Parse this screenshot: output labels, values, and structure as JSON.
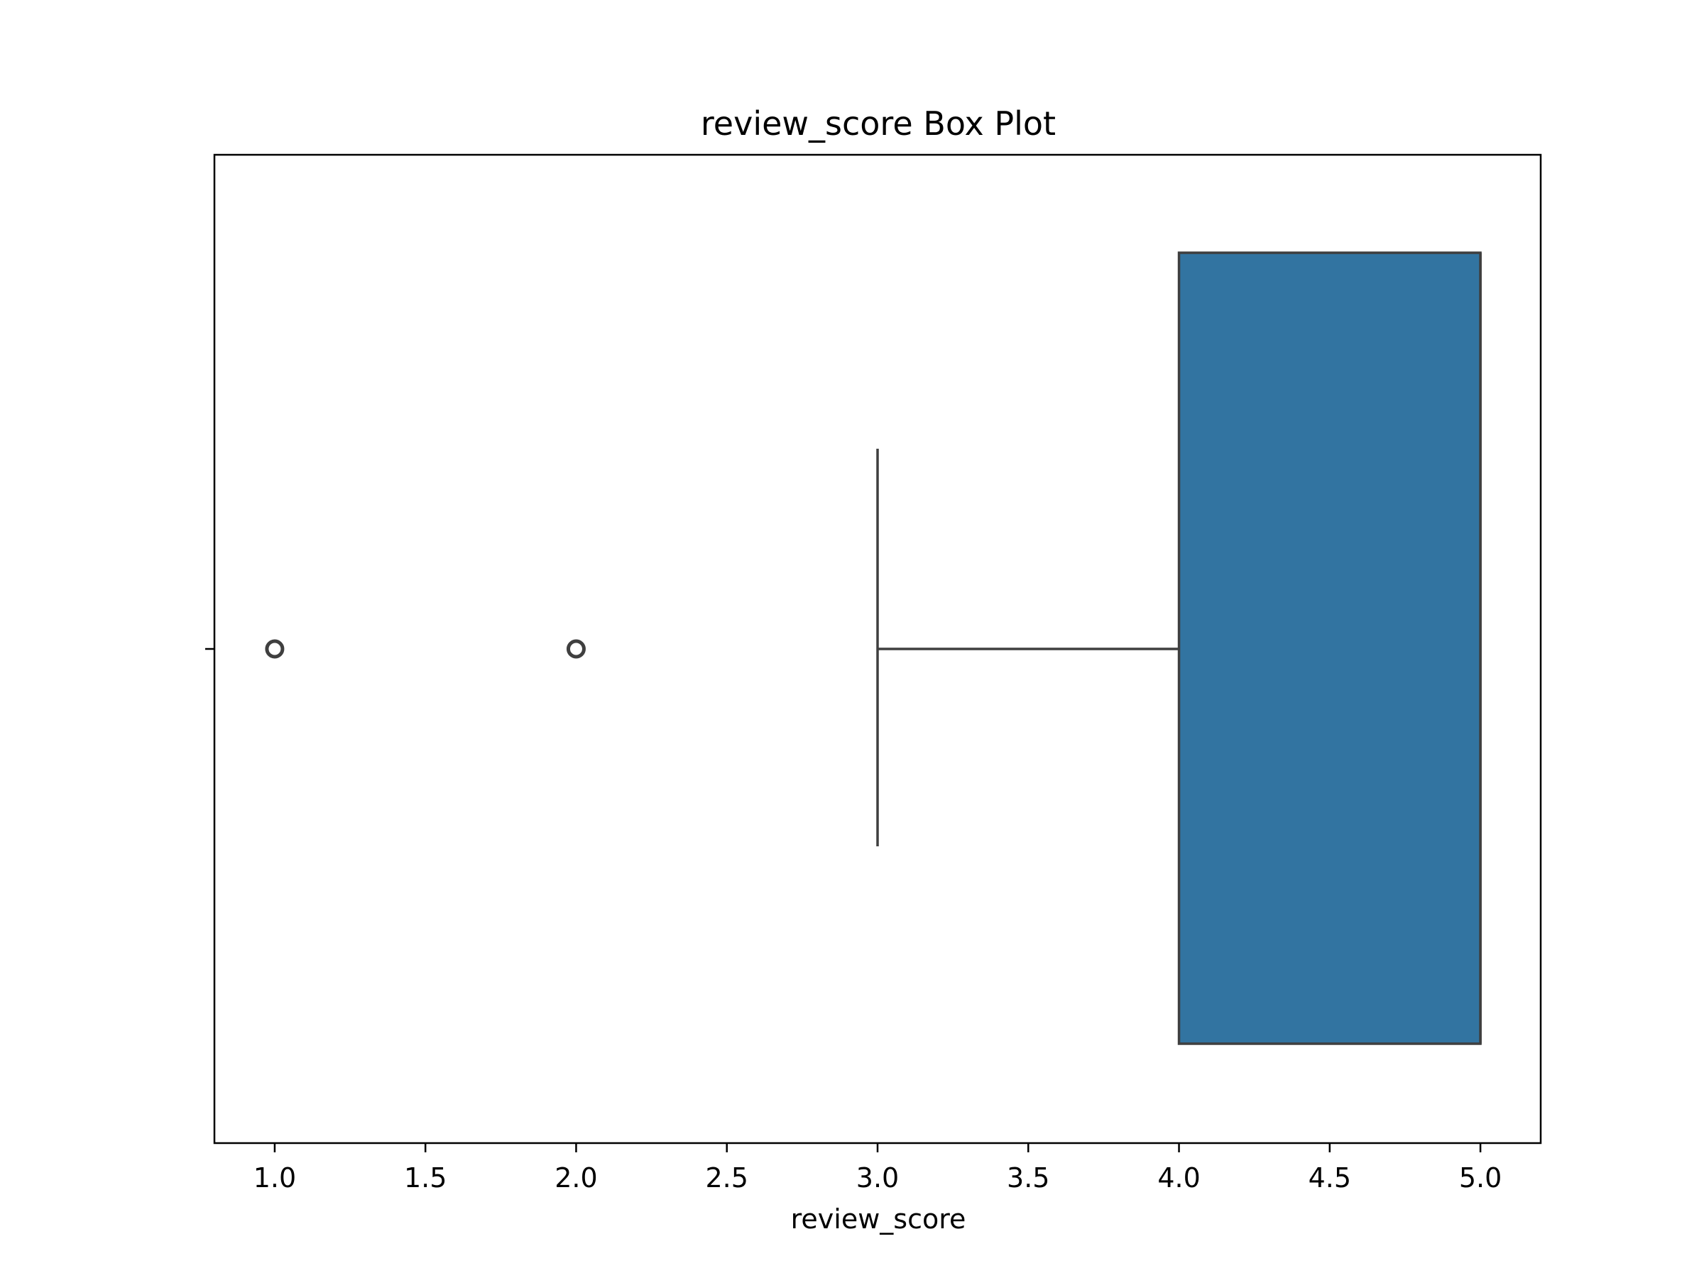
{
  "chart_data": {
    "type": "box",
    "orientation": "horizontal",
    "title": "review_score Box Plot",
    "xlabel": "review_score",
    "ylabel": "",
    "xlim": [
      0.8,
      5.2
    ],
    "xticks": [
      "1.0",
      "1.5",
      "2.0",
      "2.5",
      "3.0",
      "3.5",
      "4.0",
      "4.5",
      "5.0"
    ],
    "grid": false,
    "box": {
      "min_whisker": 3.0,
      "q1": 4.0,
      "median": 5.0,
      "q3": 5.0,
      "max_whisker": 5.0,
      "outliers": [
        1.0,
        2.0
      ]
    },
    "colors": {
      "box_fill": "#3274a1",
      "line": "#3f3f3f"
    }
  }
}
